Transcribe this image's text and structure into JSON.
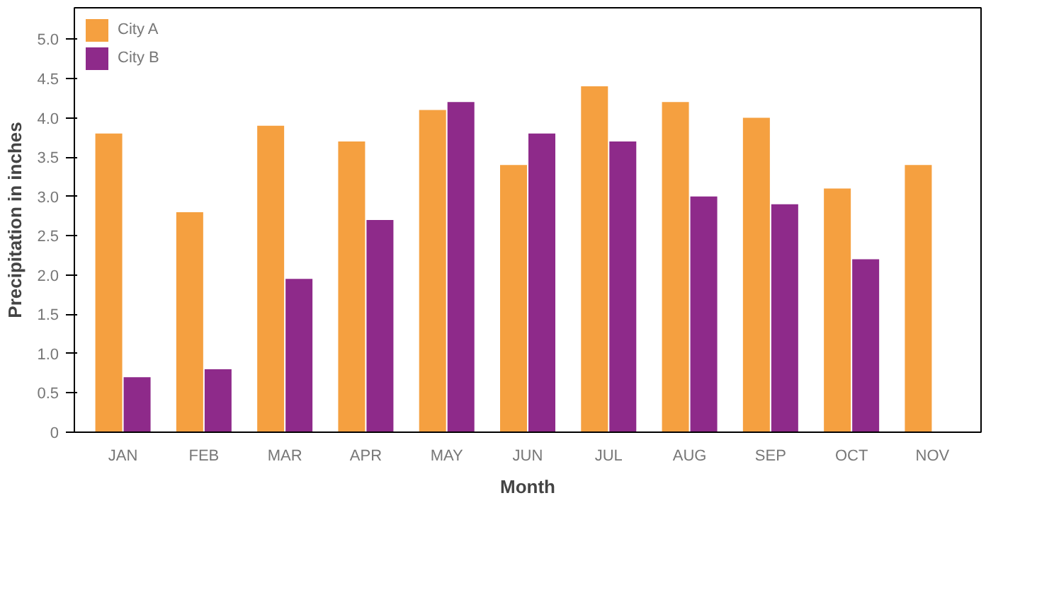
{
  "chart_data": {
    "type": "bar",
    "xlabel": "Month",
    "ylabel": "Precipitation in inches",
    "categories": [
      "JAN",
      "FEB",
      "MAR",
      "APR",
      "MAY",
      "JUN",
      "JUL",
      "AUG",
      "SEP",
      "OCT",
      "NOV"
    ],
    "series": [
      {
        "name": "City A",
        "color": "#f5a040",
        "values": [
          3.8,
          2.8,
          3.9,
          3.7,
          4.1,
          3.4,
          4.4,
          4.2,
          4.0,
          3.1,
          3.4
        ]
      },
      {
        "name": "City B",
        "color": "#8e2a8a",
        "values": [
          0.7,
          0.8,
          1.95,
          2.7,
          4.2,
          3.8,
          3.7,
          3.0,
          2.9,
          2.2,
          null
        ]
      }
    ],
    "ylim": [
      0,
      5.4
    ],
    "yticks": [
      0,
      0.5,
      {
        "value": 1,
        "label": "1.0"
      },
      1.5,
      {
        "value": 2,
        "label": "2.0"
      },
      2.5,
      {
        "value": 3,
        "label": "3.0"
      },
      3.5,
      {
        "value": 4,
        "label": "4.0"
      },
      4.5,
      {
        "value": 5,
        "label": "5.0"
      }
    ],
    "grid": false,
    "legend": "top left"
  }
}
